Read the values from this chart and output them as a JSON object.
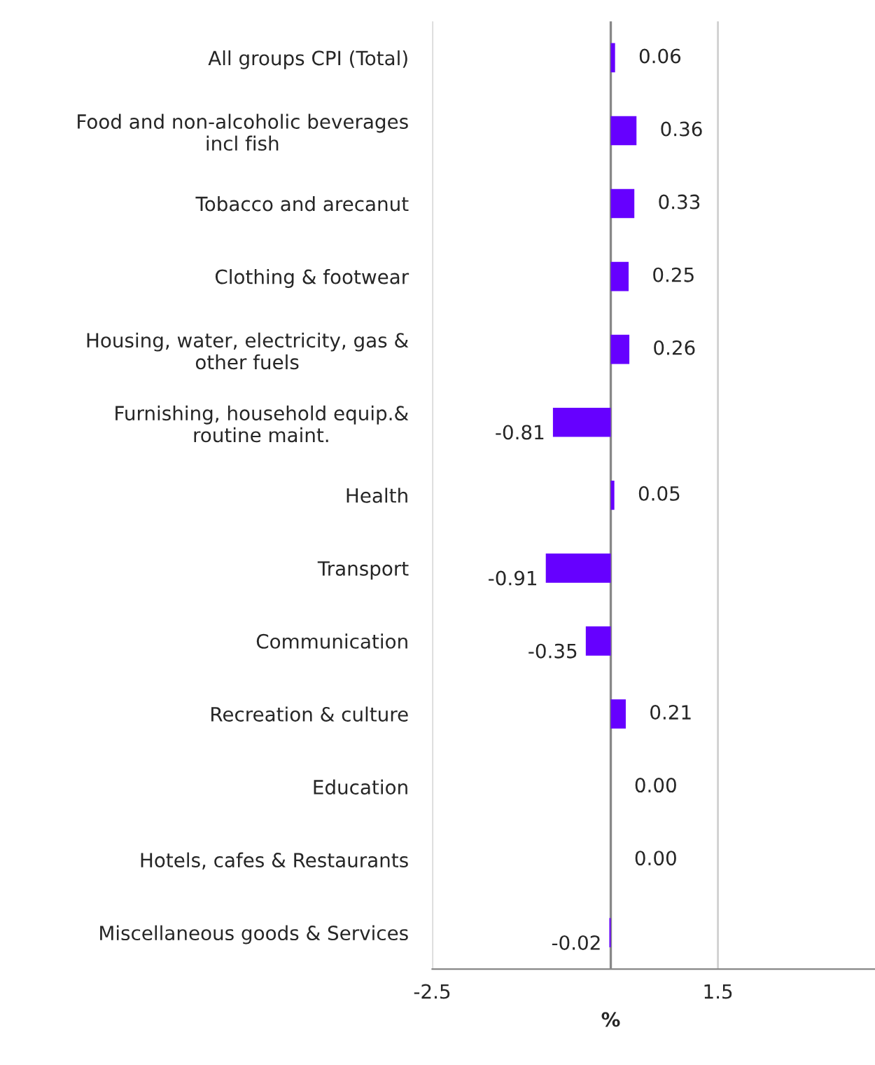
{
  "chart_data": {
    "type": "bar",
    "orientation": "horizontal",
    "xlabel": "%",
    "categories": [
      "All groups CPI (Total)",
      "Food and non-alcoholic beverages\nincl fish",
      "Tobacco and arecanut",
      "Clothing & footwear",
      "Housing, water, electricity, gas &\nother fuels",
      "Furnishing, household equip.&\nroutine maint.",
      "Health",
      "Transport",
      "Communication",
      "Recreation & culture",
      "Education",
      "Hotels, cafes & Restaurants",
      "Miscellaneous goods & Services"
    ],
    "values": [
      0.06,
      0.36,
      0.33,
      0.25,
      0.26,
      -0.81,
      0.05,
      -0.91,
      -0.35,
      0.21,
      0.0,
      0.0,
      -0.02
    ],
    "value_labels": [
      "0.06",
      "0.36",
      "0.33",
      "0.25",
      "0.26",
      "-0.81",
      "0.05",
      "-0.91",
      "-0.35",
      "0.21",
      "0.00",
      "0.00",
      "-0.02"
    ],
    "color": "#6600ff",
    "xlim": [
      -2.5,
      3.7
    ],
    "xticks": [
      -2.5,
      1.5
    ],
    "grid": "x",
    "legend": false
  }
}
